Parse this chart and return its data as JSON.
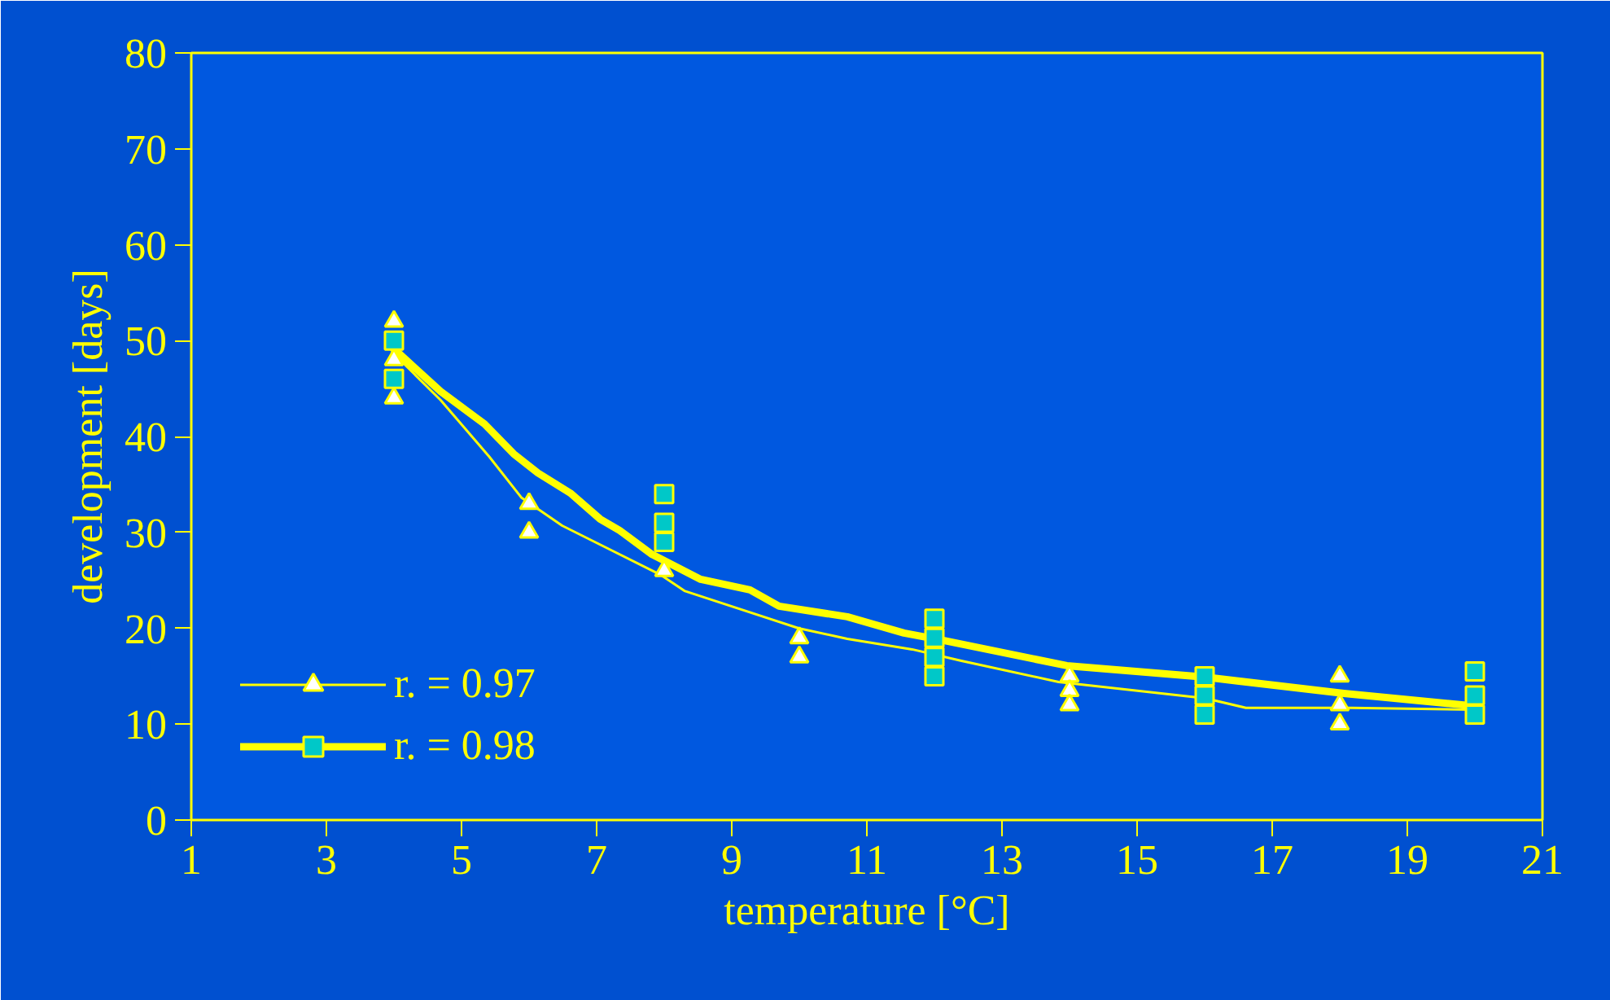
{
  "chart_data": {
    "type": "line",
    "xlabel": "temperature [°C]",
    "ylabel": "development [days]",
    "xlim": [
      1,
      21
    ],
    "ylim": [
      0,
      80
    ],
    "xticks": [
      1,
      3,
      5,
      7,
      9,
      11,
      13,
      15,
      17,
      19,
      21
    ],
    "yticks": [
      0,
      10,
      20,
      30,
      40,
      50,
      60,
      70,
      80
    ],
    "grid": false,
    "legend": "bottom left",
    "series": [
      {
        "name": "r. = 0.97",
        "color": "#ffff00",
        "x": [
          3.96,
          4.69,
          5.41,
          5.89,
          6.49,
          7.94,
          8.3,
          9.99,
          10.71,
          11.67,
          12.4,
          13.84,
          16.01,
          16.61,
          18.18,
          19.99
        ],
        "values": [
          48.9,
          43.8,
          37.9,
          33.6,
          30.7,
          25.6,
          23.9,
          20.0,
          18.9,
          17.8,
          16.6,
          14.4,
          12.7,
          11.7,
          11.7,
          11.5
        ]
      },
      {
        "name": "r. = 0.98",
        "color": "#ffff00",
        "x": [
          3.96,
          4.69,
          5.34,
          5.77,
          6.13,
          6.61,
          7.05,
          7.34,
          7.82,
          8.54,
          9.27,
          9.7,
          10.71,
          11.55,
          12.16,
          13.96,
          16.01,
          18.06,
          19.99
        ],
        "values": [
          49.4,
          44.7,
          41.3,
          38.2,
          36.2,
          34.1,
          31.4,
          30.2,
          27.7,
          25.1,
          24.0,
          22.3,
          21.2,
          19.5,
          18.7,
          16.1,
          14.9,
          13.2,
          11.9
        ]
      },
      {
        "type": "scatter",
        "marker": "square",
        "color": "#00c8c8",
        "x": [
          4,
          4,
          8,
          8,
          8,
          12,
          12,
          12,
          12,
          16,
          16,
          16,
          20,
          20,
          20
        ],
        "values": [
          50,
          46,
          34,
          31,
          29,
          21,
          19,
          17,
          15,
          15,
          13,
          11,
          15.5,
          13,
          11
        ]
      },
      {
        "type": "scatter",
        "marker": "triangle",
        "color": "#ffffff",
        "x": [
          4,
          4,
          4,
          6,
          6,
          8,
          10,
          10,
          14,
          14,
          14,
          18,
          18,
          18
        ],
        "values": [
          52,
          48,
          44,
          33,
          30,
          26,
          19,
          17,
          15,
          13.5,
          12,
          15,
          12,
          10
        ]
      }
    ]
  }
}
